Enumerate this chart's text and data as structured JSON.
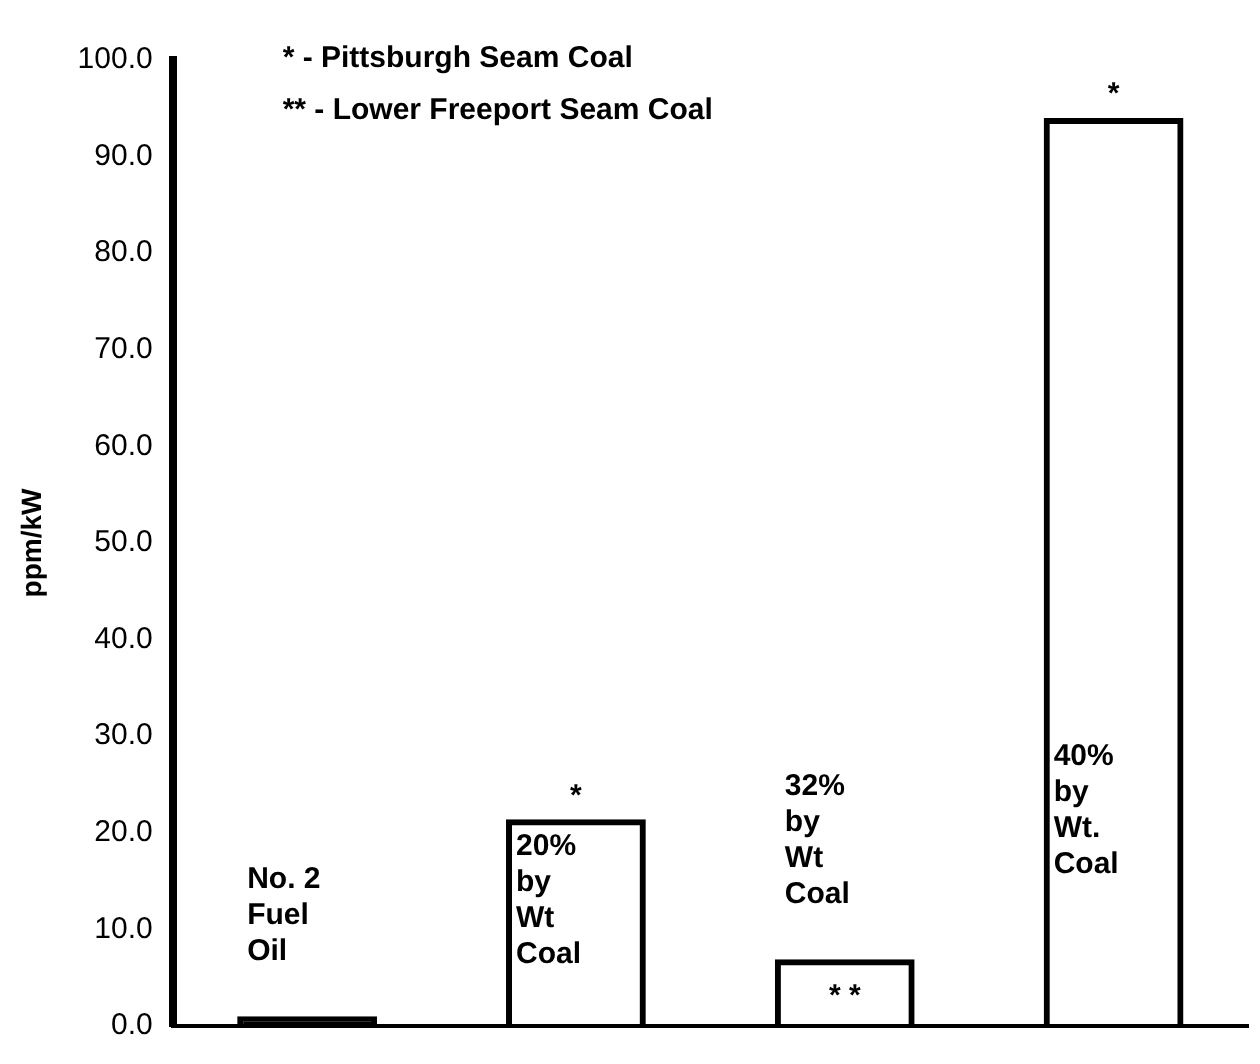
{
  "chart_data": {
    "type": "bar",
    "ylabel": "ppm/kW",
    "categories": [
      "No. 2\nFuel\nOil",
      "20%\nby\nWt\nCoal",
      "32%\nby\nWt\nCoal",
      "40%\nby\nWt.\nCoal"
    ],
    "values": [
      1.0,
      21.4,
      6.9,
      94.0
    ],
    "color": "#000000",
    "ylim": [
      0,
      100
    ],
    "yticks": [
      {
        "value": 0,
        "label": "0.0"
      },
      {
        "value": 10,
        "label": "10.0"
      },
      {
        "value": 20,
        "label": "20.0"
      },
      {
        "value": 30,
        "label": "30.0"
      },
      {
        "value": 40,
        "label": "40.0"
      },
      {
        "value": 50,
        "label": "50.0"
      },
      {
        "value": 60,
        "label": "60.0"
      },
      {
        "value": 70,
        "label": "70.0"
      },
      {
        "value": 80,
        "label": "80.0"
      },
      {
        "value": 90,
        "label": "90.0"
      },
      {
        "value": 100,
        "label": "100.0"
      }
    ],
    "annotations": [
      "* - Pittsburgh Seam Coal",
      "** - Lower Freeport Seam Coal",
      {
        "text": "*",
        "x": "20%\nby\nWt\nCoal",
        "y": 21.4
      },
      {
        "text": "* *",
        "x": "32%\nby\nWt\nCoal",
        "y": 6.9
      },
      {
        "text": "*",
        "x": "40%\nby\nWt.\nCoal",
        "y": 94.0
      }
    ],
    "grid": false,
    "tick_labels": "y"
  }
}
